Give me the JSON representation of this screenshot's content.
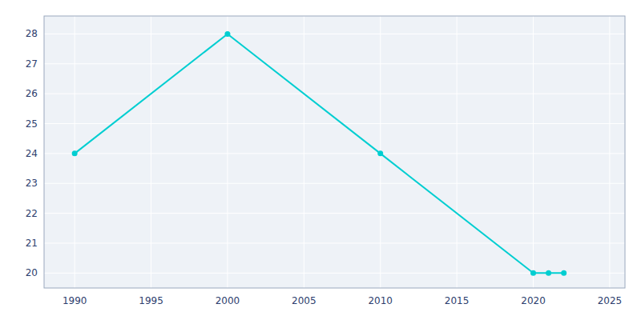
{
  "chart_data": {
    "type": "line",
    "x": [
      1990,
      2000,
      2010,
      2020,
      2021,
      2022
    ],
    "values": [
      24,
      28,
      24,
      20,
      20,
      20
    ],
    "color": "#00CED1",
    "xlim": [
      1988,
      2026
    ],
    "ylim": [
      19.5,
      28.6
    ],
    "xticks": [
      1990,
      1995,
      2000,
      2005,
      2010,
      2015,
      2020,
      2025
    ],
    "yticks": [
      20,
      21,
      22,
      23,
      24,
      25,
      26,
      27,
      28
    ],
    "grid": true,
    "marker": "circle",
    "line_style": "solid"
  }
}
